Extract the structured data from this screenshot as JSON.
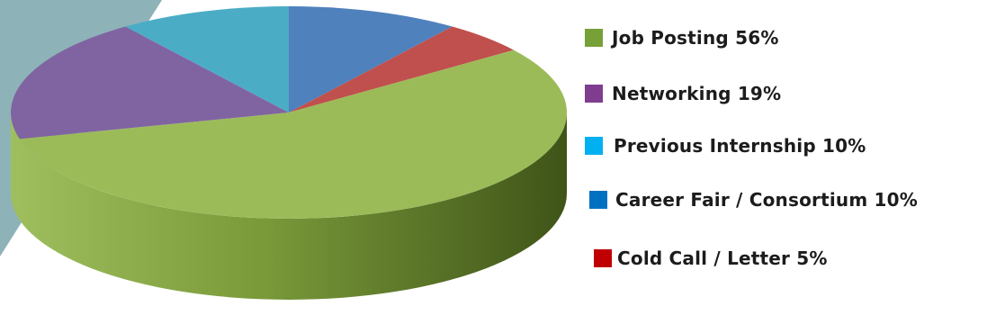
{
  "chart_data": {
    "type": "pie",
    "title": "",
    "slices": [
      {
        "label": "Job Posting",
        "value": 56,
        "display": "Job Posting 56%",
        "color": "#9BBB59"
      },
      {
        "label": "Networking",
        "value": 19,
        "display": "Networking 19%",
        "color": "#8064A2"
      },
      {
        "label": "Previous Internship",
        "value": 10,
        "display": "Previous Internship 10%",
        "color": "#4BACC6"
      },
      {
        "label": "Career Fair / Consortium",
        "value": 10,
        "display": "Career Fair / Consortium 10%",
        "color": "#4F81BD"
      },
      {
        "label": "Cold Call / Letter",
        "value": 5,
        "display": "Cold Call / Letter 5%",
        "color": "#C0504D"
      }
    ],
    "legend_swatch_colors": [
      "#77A038",
      "#7E3D8F",
      "#00B0F0",
      "#0070C0",
      "#C00000"
    ],
    "legend_position": "right",
    "style": "3d-pie"
  },
  "decor": {
    "accent_color": "#8DB3B8"
  }
}
